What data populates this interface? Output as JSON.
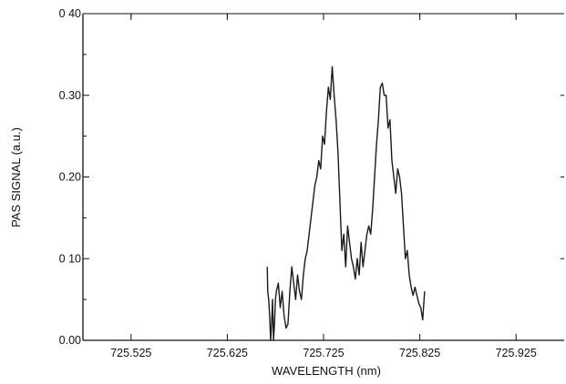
{
  "chart_data": {
    "type": "line",
    "title": "",
    "xlabel": "WAVELENGTH (nm)",
    "ylabel": "PAS SIGNAL (a.u.)",
    "xlim": [
      725.475,
      725.975
    ],
    "ylim": [
      0.0,
      0.4
    ],
    "x_ticks": [
      725.525,
      725.625,
      725.725,
      725.825,
      725.925
    ],
    "x_tick_labels": [
      "725.525",
      "725.625",
      "725.725",
      "725.825",
      "725.925"
    ],
    "y_ticks": [
      0.0,
      0.1,
      0.2,
      0.3,
      0.4
    ],
    "y_tick_labels": [
      "0.00",
      "0 10",
      "0.20",
      "0.30",
      "0 40"
    ],
    "grid": false,
    "legend": "none",
    "line_color": "#1a1a1a",
    "series": [
      {
        "x": [
          725.6665,
          725.667,
          725.668,
          725.669,
          725.67,
          725.671,
          725.672,
          725.673,
          725.674,
          725.675,
          725.676,
          725.678,
          725.68,
          725.682,
          725.684,
          725.686,
          725.688,
          725.69,
          725.692,
          725.694,
          725.696,
          725.698,
          725.7,
          725.702,
          725.704,
          725.706,
          725.708,
          725.71,
          725.712,
          725.714,
          725.716,
          725.718,
          725.72,
          725.722,
          725.724,
          725.726,
          725.728,
          725.73,
          725.732,
          725.734,
          725.736,
          725.738,
          725.74,
          725.742,
          725.744,
          725.746,
          725.748,
          725.75,
          725.752,
          725.754,
          725.756,
          725.758,
          725.76,
          725.762,
          725.764,
          725.766,
          725.768,
          725.77,
          725.772,
          725.774,
          725.776,
          725.778,
          725.78,
          725.782,
          725.784,
          725.786,
          725.788,
          725.79,
          725.792,
          725.794,
          725.796,
          725.798,
          725.8,
          725.802,
          725.804,
          725.806,
          725.808,
          725.81,
          725.812,
          725.814,
          725.816,
          725.818,
          725.82,
          725.822,
          725.824,
          725.826,
          725.828,
          725.83
        ],
        "y": [
          0.09,
          0.06,
          0.05,
          0.03,
          0.0,
          0.02,
          0.05,
          0.0,
          0.02,
          0.05,
          0.06,
          0.07,
          0.04,
          0.06,
          0.03,
          0.015,
          0.02,
          0.06,
          0.09,
          0.07,
          0.05,
          0.08,
          0.06,
          0.05,
          0.08,
          0.1,
          0.11,
          0.13,
          0.15,
          0.17,
          0.19,
          0.2,
          0.22,
          0.21,
          0.25,
          0.24,
          0.28,
          0.31,
          0.295,
          0.335,
          0.3,
          0.27,
          0.23,
          0.17,
          0.11,
          0.13,
          0.09,
          0.14,
          0.12,
          0.1,
          0.09,
          0.075,
          0.1,
          0.08,
          0.12,
          0.09,
          0.11,
          0.13,
          0.14,
          0.13,
          0.16,
          0.2,
          0.24,
          0.27,
          0.31,
          0.315,
          0.3,
          0.3,
          0.26,
          0.27,
          0.22,
          0.2,
          0.18,
          0.21,
          0.2,
          0.18,
          0.14,
          0.1,
          0.11,
          0.08,
          0.065,
          0.055,
          0.065,
          0.055,
          0.045,
          0.04,
          0.025,
          0.06
        ]
      }
    ]
  }
}
